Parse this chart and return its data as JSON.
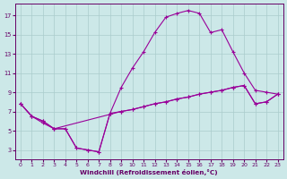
{
  "xlabel": "Windchill (Refroidissement éolien,°C)",
  "bg_color": "#cce8e8",
  "line_color": "#990099",
  "grid_color": "#aacccc",
  "text_color": "#660066",
  "xlim_min": -0.5,
  "xlim_max": 23.5,
  "ylim_min": 2.0,
  "ylim_max": 18.2,
  "xticks": [
    0,
    1,
    2,
    3,
    4,
    5,
    6,
    7,
    8,
    9,
    10,
    11,
    12,
    13,
    14,
    15,
    16,
    17,
    18,
    19,
    20,
    21,
    22,
    23
  ],
  "yticks": [
    3,
    5,
    7,
    9,
    11,
    13,
    15,
    17
  ],
  "line1": {
    "x": [
      0,
      1,
      2,
      3,
      4,
      5,
      6,
      7,
      8,
      9,
      10,
      11,
      12,
      13,
      14,
      15,
      16,
      17,
      18,
      19,
      20,
      21,
      22,
      23
    ],
    "y": [
      7.8,
      6.5,
      6.0,
      5.2,
      5.2,
      3.2,
      3.0,
      2.8,
      6.8,
      9.5,
      11.5,
      13.2,
      15.2,
      16.8,
      17.2,
      17.5,
      17.2,
      15.2,
      15.5,
      13.2,
      11.0,
      9.2,
      9.0,
      8.8
    ]
  },
  "line2": {
    "x": [
      0,
      1,
      2,
      3,
      9,
      10,
      11,
      12,
      13,
      14,
      15,
      16,
      17,
      18,
      19,
      20,
      21,
      22,
      23
    ],
    "y": [
      7.8,
      6.5,
      6.0,
      5.2,
      7.0,
      7.2,
      7.5,
      7.8,
      8.0,
      8.3,
      8.5,
      8.8,
      9.0,
      9.2,
      9.5,
      9.7,
      7.8,
      8.0,
      8.8
    ]
  },
  "line3": {
    "x": [
      0,
      1,
      2,
      3,
      4,
      5,
      6,
      7,
      8,
      9,
      10,
      11,
      12,
      13,
      14,
      15,
      16,
      17,
      18,
      19,
      20,
      21,
      22,
      23
    ],
    "y": [
      7.8,
      6.5,
      5.8,
      5.2,
      5.2,
      3.2,
      3.0,
      2.8,
      6.8,
      7.0,
      7.2,
      7.5,
      7.8,
      8.0,
      8.3,
      8.5,
      8.8,
      9.0,
      9.2,
      9.5,
      9.7,
      7.8,
      8.0,
      8.8
    ]
  }
}
